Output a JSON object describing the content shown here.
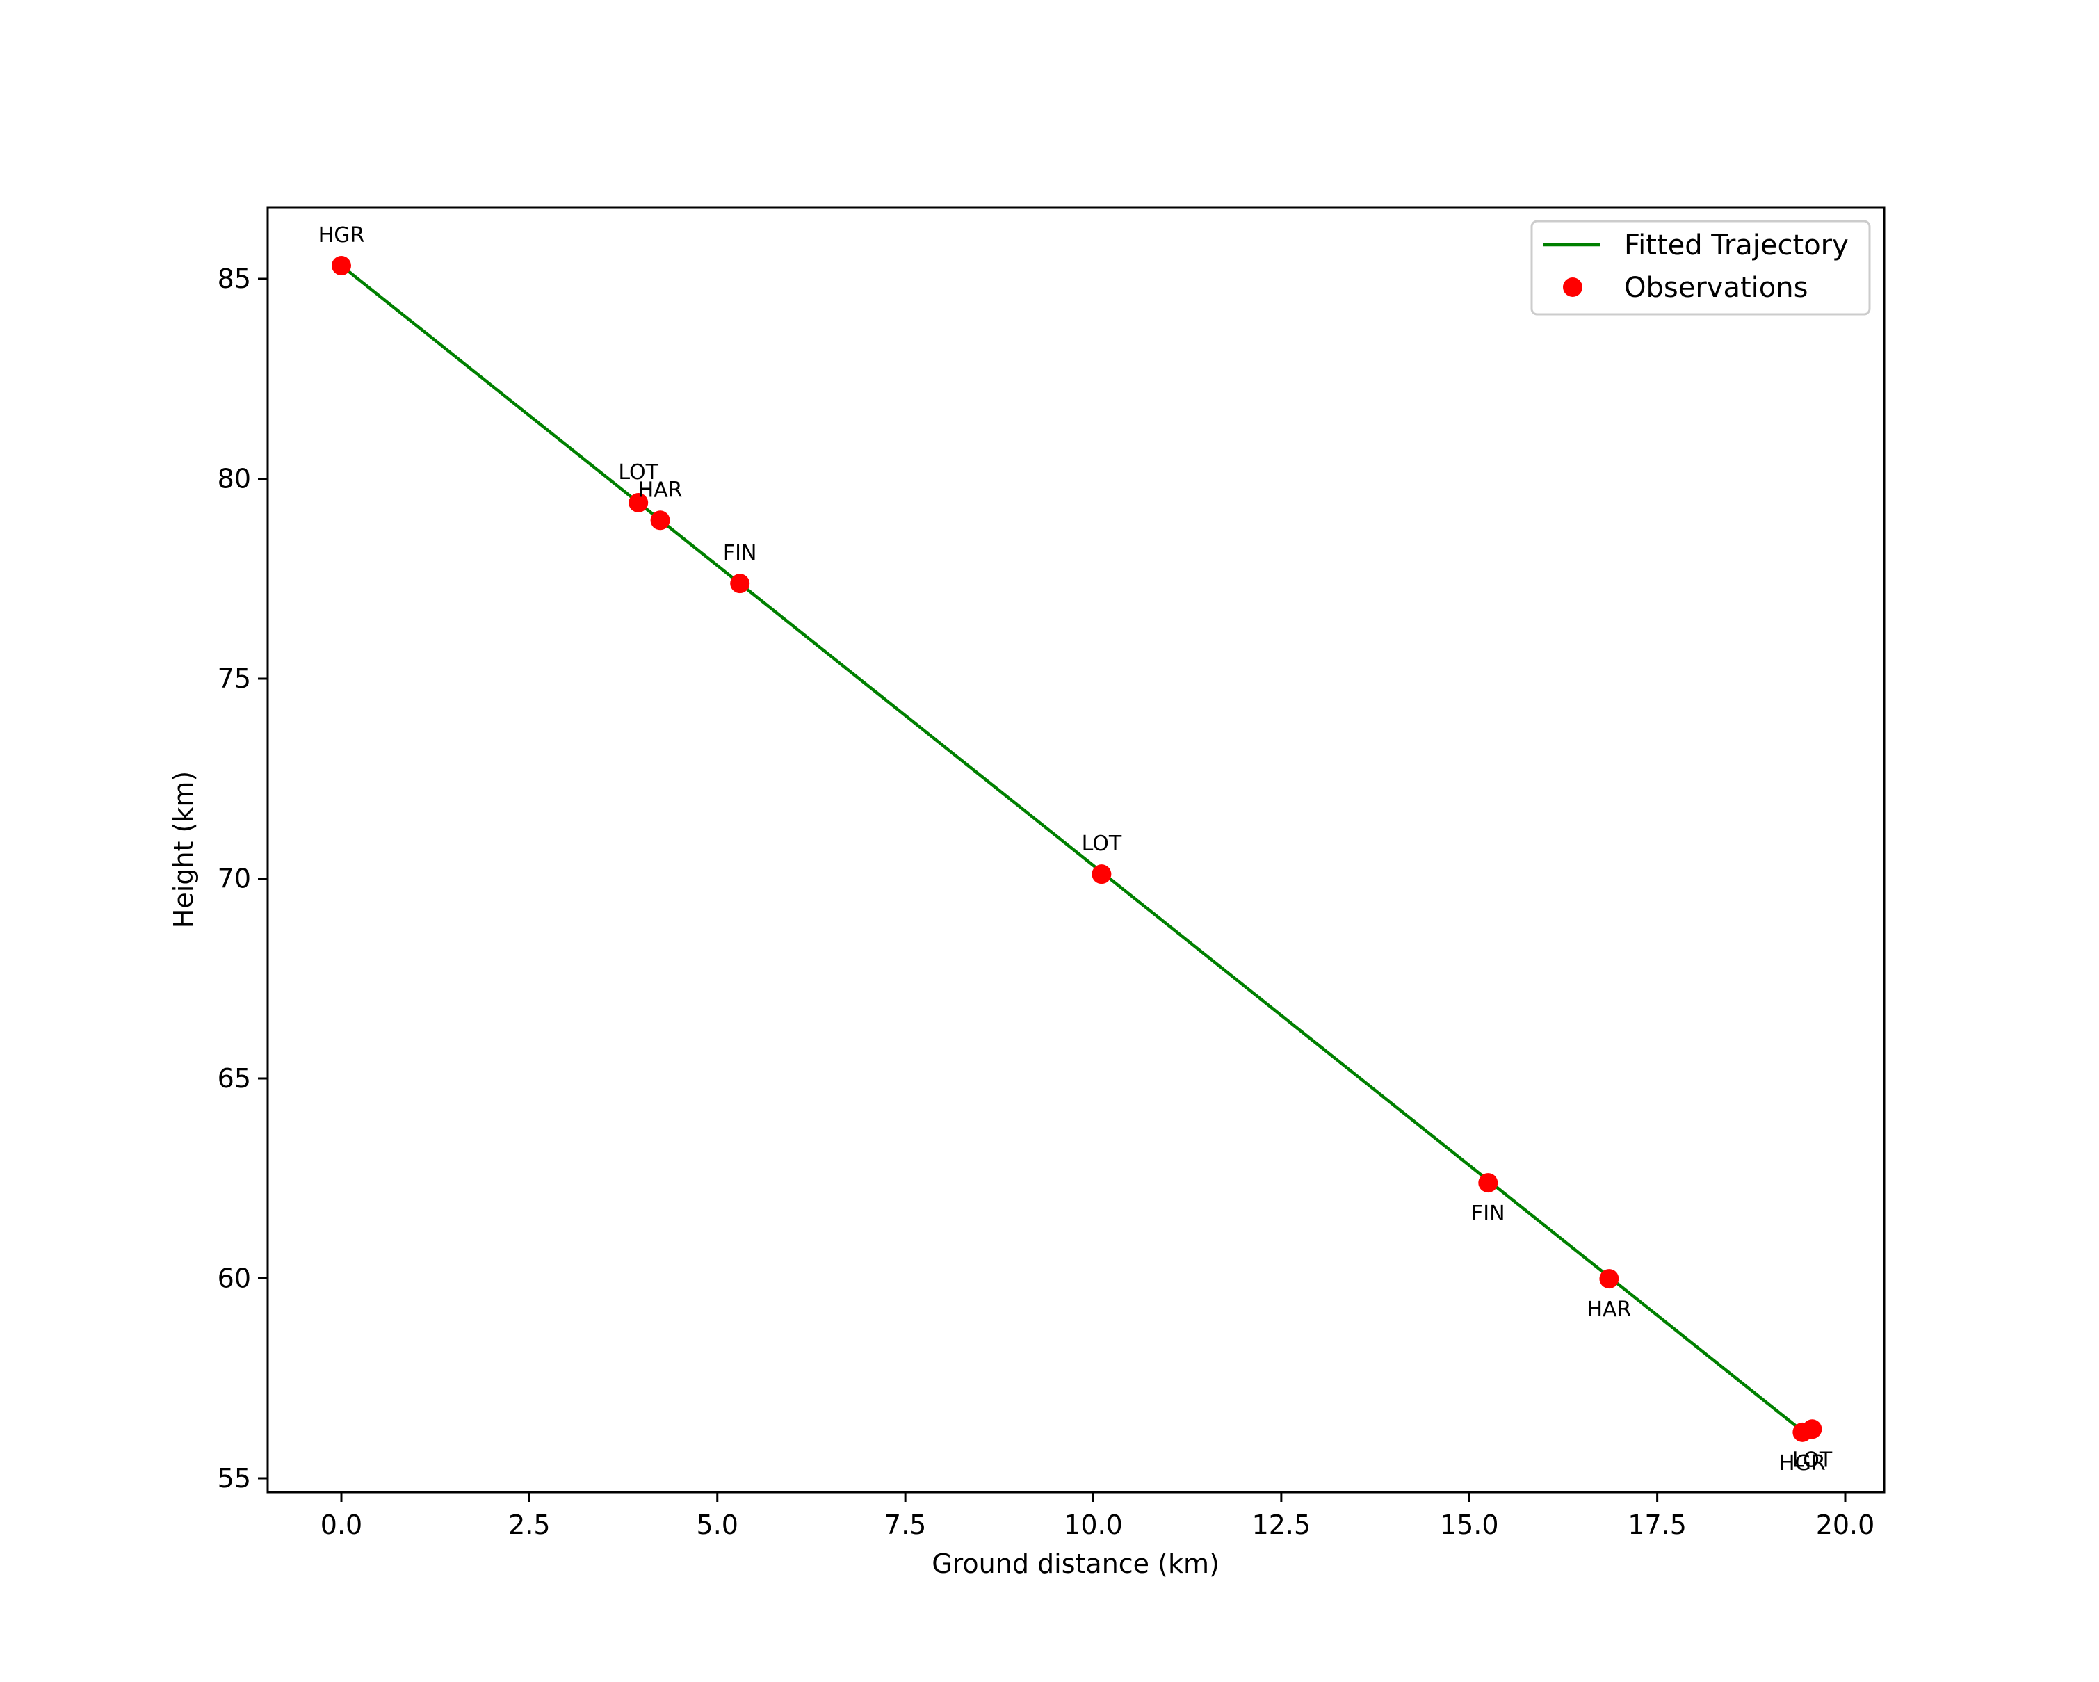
{
  "chart_data": {
    "type": "line",
    "title": "",
    "xlabel": "Ground distance (km)",
    "ylabel": "Height (km)",
    "xlim": [
      -1.0,
      20.25
    ],
    "ylim": [
      54.7,
      86.8
    ],
    "xticks": [
      0.0,
      2.5,
      5.0,
      7.5,
      10.0,
      12.5,
      15.0,
      17.5,
      20.0
    ],
    "xtick_labels": [
      "0.0",
      "2.5",
      "5.0",
      "7.5",
      "10.0",
      "12.5",
      "15.0",
      "17.5",
      "20.0"
    ],
    "yticks": [
      55,
      60,
      65,
      70,
      75,
      80,
      85
    ],
    "ytick_labels": [
      "55",
      "60",
      "65",
      "70",
      "75",
      "80",
      "85"
    ],
    "grid": false,
    "legend_position": "upper right",
    "series": [
      {
        "name": "Fitted Trajectory",
        "kind": "line",
        "color": "#008000",
        "x": [
          0.0,
          19.35
        ],
        "y": [
          85.33,
          56.3
        ]
      },
      {
        "name": "Observations",
        "kind": "scatter",
        "color": "#ff0000",
        "points": [
          {
            "label": "HGR",
            "x": 0.0,
            "y": 85.33,
            "label_pos": "above"
          },
          {
            "label": "LOT",
            "x": 3.95,
            "y": 79.4,
            "label_pos": "above"
          },
          {
            "label": "HAR",
            "x": 4.24,
            "y": 78.96,
            "label_pos": "above"
          },
          {
            "label": "FIN",
            "x": 5.3,
            "y": 77.38,
            "label_pos": "above"
          },
          {
            "label": "LOT",
            "x": 10.11,
            "y": 70.11,
            "label_pos": "above"
          },
          {
            "label": "FIN",
            "x": 15.25,
            "y": 62.39,
            "label_pos": "below"
          },
          {
            "label": "HAR",
            "x": 16.86,
            "y": 59.99,
            "label_pos": "below"
          },
          {
            "label": "HGR",
            "x": 19.43,
            "y": 56.15,
            "label_pos": "below"
          },
          {
            "label": "LOT",
            "x": 19.56,
            "y": 56.23,
            "label_pos": "below"
          }
        ]
      }
    ],
    "legend": [
      "Fitted Trajectory",
      "Observations"
    ]
  }
}
